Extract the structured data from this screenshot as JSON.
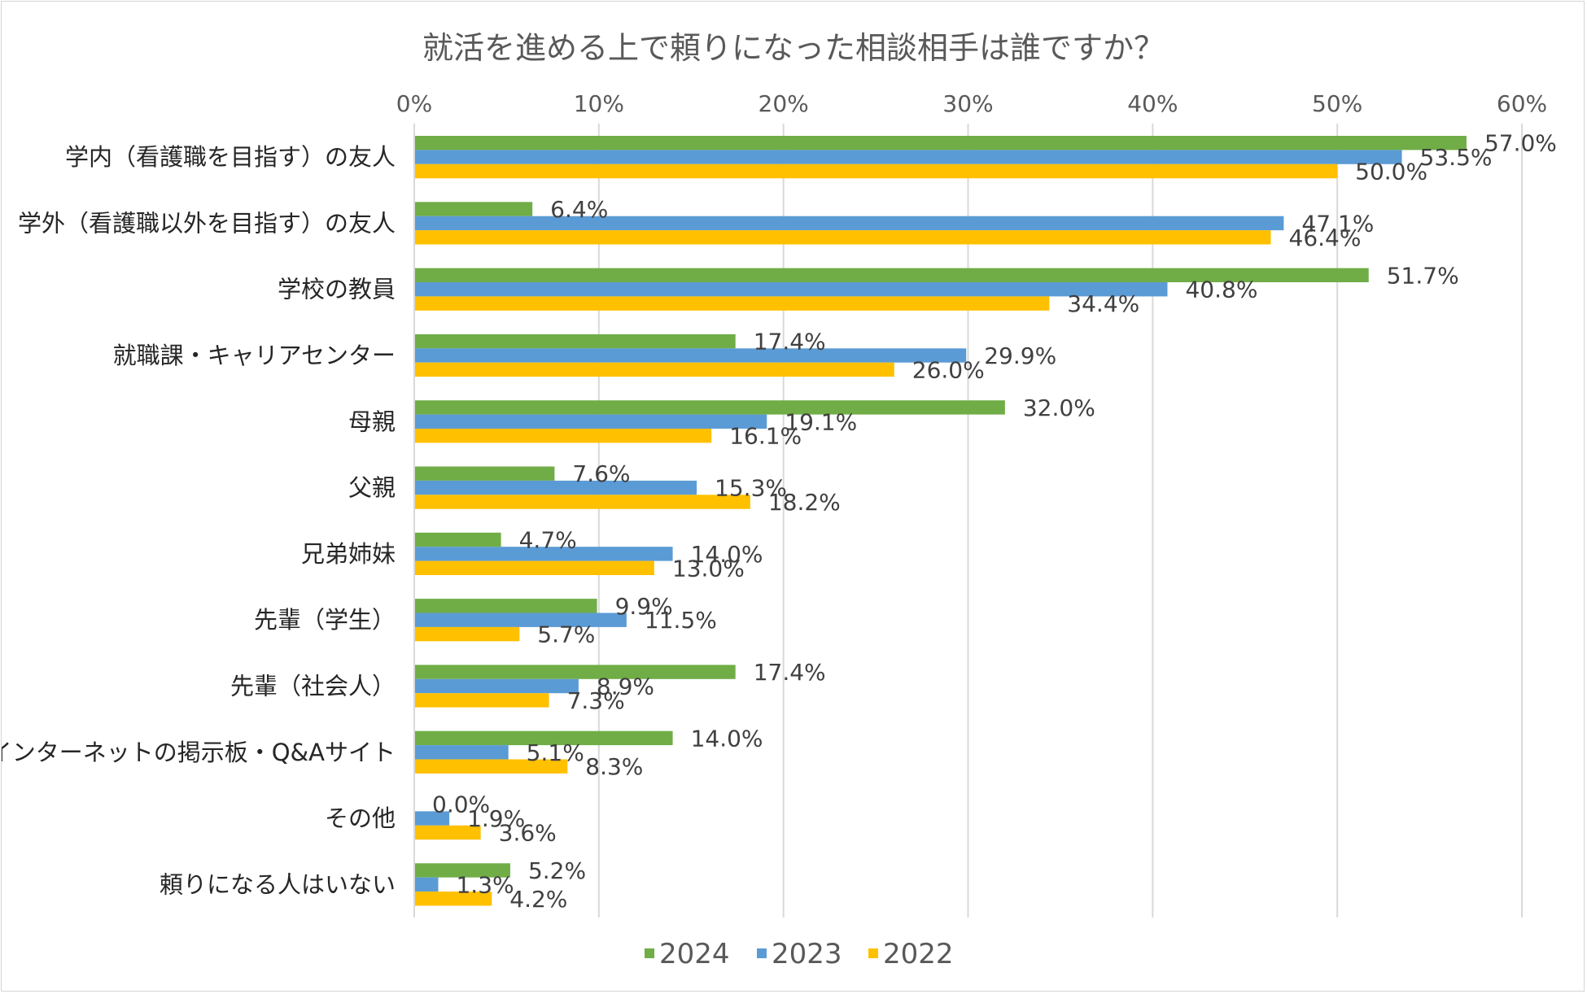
{
  "chart_data": {
    "type": "bar",
    "orientation": "horizontal",
    "title": "就活を進める上で頼りになった相談相手は誰ですか？",
    "xlabel": "",
    "ylabel": "",
    "xlim": [
      0,
      60
    ],
    "ticks": [
      "0%",
      "10%",
      "20%",
      "30%",
      "40%",
      "50%",
      "60%"
    ],
    "tick_values": [
      0,
      10,
      20,
      30,
      40,
      50,
      60
    ],
    "grid": true,
    "legend_position": "bottom",
    "categories": [
      "学内（看護職を目指す）の友人",
      "学外（看護職以外を目指す）の友人",
      "学校の教員",
      "就職課・キャリアセンター",
      "母親",
      "父親",
      "兄弟姉妹",
      "先輩（学生）",
      "先輩（社会人）",
      "インターネットの掲示板・Q&Aサイト",
      "その他",
      "頼りになる人はいない"
    ],
    "series": [
      {
        "name": "2024",
        "color": "#70AD47",
        "values": [
          57.0,
          6.4,
          51.7,
          17.4,
          32.0,
          7.6,
          4.7,
          9.9,
          17.4,
          14.0,
          0.0,
          5.2
        ],
        "labels": [
          "57.0%",
          "6.4%",
          "51.7%",
          "17.4%",
          "32.0%",
          "7.6%",
          "4.7%",
          "9.9%",
          "17.4%",
          "14.0%",
          "0.0%",
          "5.2%"
        ]
      },
      {
        "name": "2023",
        "color": "#5B9BD5",
        "values": [
          53.5,
          47.1,
          40.8,
          29.9,
          19.1,
          15.3,
          14.0,
          11.5,
          8.9,
          5.1,
          1.9,
          1.3
        ],
        "labels": [
          "53.5%",
          "47.1%",
          "40.8%",
          "29.9%",
          "19.1%",
          "15.3%",
          "14.0%",
          "11.5%",
          "8.9%",
          "5.1%",
          "1.9%",
          "1.3%"
        ]
      },
      {
        "name": "2022",
        "color": "#FFC000",
        "values": [
          50.0,
          46.4,
          34.4,
          26.0,
          16.1,
          18.2,
          13.0,
          5.7,
          7.3,
          8.3,
          3.6,
          4.2
        ],
        "labels": [
          "50.0%",
          "46.4%",
          "34.4%",
          "26.0%",
          "16.1%",
          "18.2%",
          "13.0%",
          "5.7%",
          "7.3%",
          "8.3%",
          "3.6%",
          "4.2%"
        ]
      }
    ]
  }
}
